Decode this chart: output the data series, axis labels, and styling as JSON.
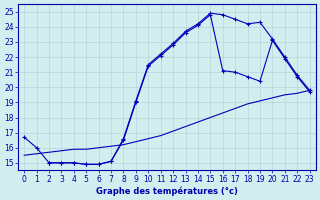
{
  "bg_color": "#d4eef0",
  "line_color": "#0000bb",
  "grid_color": "#b0d8dc",
  "axis_color": "#0000aa",
  "xlabel": "Graphe des températures (°c)",
  "xlim": [
    -0.5,
    23.5
  ],
  "ylim": [
    14.5,
    25.5
  ],
  "yticks": [
    15,
    16,
    17,
    18,
    19,
    20,
    21,
    22,
    23,
    24,
    25
  ],
  "xticks": [
    0,
    1,
    2,
    3,
    4,
    5,
    6,
    7,
    8,
    9,
    10,
    11,
    12,
    13,
    14,
    15,
    16,
    17,
    18,
    19,
    20,
    21,
    22,
    23
  ],
  "line1_x": [
    0,
    1,
    2,
    3,
    4,
    5,
    6,
    7,
    8,
    9,
    10,
    11,
    12,
    13,
    14,
    15,
    16,
    17,
    18,
    19,
    20,
    21,
    22,
    23
  ],
  "line1_y": [
    16.7,
    16.0,
    15.0,
    15.0,
    15.0,
    14.9,
    14.9,
    15.1,
    16.6,
    19.1,
    21.5,
    22.2,
    22.9,
    23.7,
    24.2,
    24.9,
    24.8,
    24.5,
    24.2,
    24.3,
    23.2,
    22.0,
    20.8,
    19.8
  ],
  "line2_x": [
    2,
    3,
    4,
    5,
    6,
    7,
    8,
    9,
    10,
    11,
    12,
    13,
    14,
    15,
    16,
    17,
    18,
    19,
    20,
    21,
    22,
    23
  ],
  "line2_y": [
    15.0,
    15.0,
    15.0,
    14.9,
    14.9,
    15.1,
    16.5,
    19.0,
    21.4,
    22.1,
    22.8,
    23.6,
    24.1,
    24.8,
    21.1,
    21.0,
    20.7,
    20.4,
    23.1,
    21.9,
    20.7,
    19.7
  ],
  "line3_x": [
    0,
    1,
    2,
    3,
    4,
    5,
    6,
    7,
    8,
    9,
    10,
    11,
    12,
    13,
    14,
    15,
    16,
    17,
    18,
    19,
    20,
    21,
    22,
    23
  ],
  "line3_y": [
    15.5,
    15.6,
    15.7,
    15.8,
    15.9,
    15.9,
    16.0,
    16.1,
    16.2,
    16.4,
    16.6,
    16.8,
    17.1,
    17.4,
    17.7,
    18.0,
    18.3,
    18.6,
    18.9,
    19.1,
    19.3,
    19.5,
    19.6,
    19.8
  ]
}
